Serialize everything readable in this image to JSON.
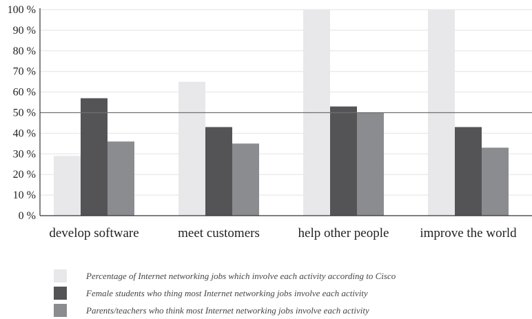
{
  "chart_data": {
    "type": "bar",
    "categories": [
      "develop software",
      "meet customers",
      "help other people",
      "improve the world"
    ],
    "series": [
      {
        "name": "Percentage of Internet networking jobs which involve each activity according to Cisco",
        "color": "#e8e8ea",
        "values": [
          29,
          65,
          100,
          100
        ]
      },
      {
        "name": "Female students who thing most Internet networking jobs involve each activity",
        "color": "#545457",
        "values": [
          57,
          43,
          53,
          43
        ]
      },
      {
        "name": "Parents/teachers who think most Internet networking jobs involve each activity",
        "color": "#8b8c8f",
        "values": [
          36,
          35,
          50,
          33
        ]
      }
    ],
    "y_ticks": [
      "0 %",
      "10 %",
      "20 %",
      "30 %",
      "40 %",
      "50 %",
      "60 %",
      "70 %",
      "80 %",
      "90 %",
      "100 %"
    ],
    "ylim": [
      0,
      100
    ],
    "reference_line": 50,
    "grid": true,
    "legend_position": "bottom"
  }
}
